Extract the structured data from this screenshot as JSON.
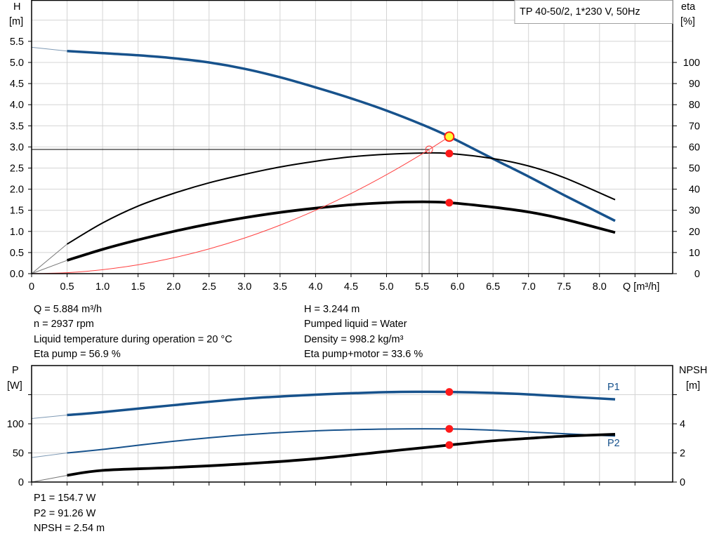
{
  "title_box": "TP 40-50/2, 1*230 V, 50Hz",
  "top_chart": {
    "left_axis": {
      "name": "H",
      "unit": "[m]"
    },
    "right_axis": {
      "name": "eta",
      "unit": "[%]"
    },
    "x_axis_label": "Q [m³/h]"
  },
  "bottom_chart": {
    "left_axis": {
      "name": "P",
      "unit": "[W]"
    },
    "right_axis": {
      "name": "NPSH",
      "unit": "[m]"
    },
    "curve_labels": {
      "p1": "P1",
      "p2": "P2"
    }
  },
  "readouts": {
    "q": "Q = 5.884 m³/h",
    "n": "n = 2937 rpm",
    "liquid_temp": "Liquid temperature during operation = 20 °C",
    "eta_pump": "Eta pump = 56.9 %",
    "h": "H = 3.244 m",
    "pumped_liquid": "Pumped liquid = Water",
    "density": "Density = 998.2 kg/m³",
    "eta_pump_motor": "Eta pump+motor = 33.6 %",
    "p1": "P1 = 154.7 W",
    "p2": "P2 = 91.26 W",
    "npsh": "NPSH = 2.54 m"
  },
  "colors": {
    "curve_blue": "#17528c",
    "marker_red": "#ff1a1a",
    "duty_yellow": "#ffff33",
    "system_red": "#ff4040",
    "grid": "#d4d4d4"
  },
  "chart_data": [
    {
      "type": "line",
      "title": "TP 40-50/2, 1*230 V, 50Hz",
      "xlabel": "Q [m³/h]",
      "ylabel": "H [m]",
      "y2label": "eta [%]",
      "xlim": [
        0,
        9.0
      ],
      "ylim": [
        0,
        6.45
      ],
      "y2lim": [
        0,
        129
      ],
      "grid": true,
      "xticks": [
        "0",
        "0.5",
        "1.0",
        "1.5",
        "2.0",
        "2.5",
        "3.0",
        "3.5",
        "4.0",
        "4.5",
        "5.0",
        "5.5",
        "6.0",
        "6.5",
        "7.0",
        "7.5",
        "8.0"
      ],
      "yticks": [
        "0.0",
        "0.5",
        "1.0",
        "1.5",
        "2.0",
        "2.5",
        "3.0",
        "3.5",
        "4.0",
        "4.5",
        "5.0",
        "5.5"
      ],
      "y2ticks": [
        "0",
        "10",
        "20",
        "30",
        "40",
        "50",
        "60",
        "70",
        "80",
        "90",
        "100"
      ],
      "series": [
        {
          "axis": "left",
          "style": "thick-blue",
          "extension": [
            [
              0,
              5.36
            ],
            [
              0.5,
              5.27
            ]
          ],
          "points": [
            [
              0.5,
              5.27
            ],
            [
              1.0,
              5.22
            ],
            [
              1.5,
              5.17
            ],
            [
              2.0,
              5.1
            ],
            [
              2.5,
              5.0
            ],
            [
              3.0,
              4.85
            ],
            [
              3.5,
              4.65
            ],
            [
              4.0,
              4.41
            ],
            [
              4.5,
              4.15
            ],
            [
              5.0,
              3.86
            ],
            [
              5.5,
              3.53
            ],
            [
              5.884,
              3.244
            ],
            [
              6.5,
              2.72
            ],
            [
              7.0,
              2.3
            ],
            [
              7.5,
              1.86
            ],
            [
              8.22,
              1.25
            ]
          ]
        },
        {
          "axis": "right",
          "style": "thin-black",
          "extension": [
            [
              0,
              0
            ],
            [
              0.5,
              14
            ]
          ],
          "points": [
            [
              0.5,
              14
            ],
            [
              1.0,
              24
            ],
            [
              1.5,
              32
            ],
            [
              2.0,
              38
            ],
            [
              2.5,
              43
            ],
            [
              3.0,
              47
            ],
            [
              3.5,
              50.5
            ],
            [
              4.0,
              53.2
            ],
            [
              4.5,
              55.3
            ],
            [
              5.0,
              56.5
            ],
            [
              5.5,
              57.1
            ],
            [
              5.884,
              56.9
            ],
            [
              6.5,
              54.5
            ],
            [
              7.0,
              51
            ],
            [
              7.5,
              45.5
            ],
            [
              8.22,
              35
            ]
          ]
        },
        {
          "axis": "right",
          "style": "thick-black",
          "extension": [
            [
              0,
              0
            ],
            [
              0.5,
              6.3
            ]
          ],
          "points": [
            [
              0.5,
              6.3
            ],
            [
              1.0,
              11.5
            ],
            [
              1.5,
              16
            ],
            [
              2.0,
              20
            ],
            [
              2.5,
              23.5
            ],
            [
              3.0,
              26.5
            ],
            [
              3.5,
              29
            ],
            [
              4.0,
              31
            ],
            [
              4.5,
              32.6
            ],
            [
              5.0,
              33.6
            ],
            [
              5.5,
              34
            ],
            [
              5.884,
              33.6
            ],
            [
              6.5,
              31.5
            ],
            [
              7.0,
              29.2
            ],
            [
              7.5,
              25.8
            ],
            [
              8.22,
              19.5
            ]
          ]
        },
        {
          "axis": "left",
          "style": "system-curve",
          "points": [
            [
              0,
              0
            ],
            [
              0.5,
              0.023
            ],
            [
              1.0,
              0.094
            ],
            [
              1.5,
              0.21
            ],
            [
              2.0,
              0.375
            ],
            [
              2.5,
              0.586
            ],
            [
              3.0,
              0.843
            ],
            [
              3.5,
              1.148
            ],
            [
              4.0,
              1.5
            ],
            [
              4.5,
              1.897
            ],
            [
              5.0,
              2.343
            ],
            [
              5.5,
              2.834
            ],
            [
              5.884,
              3.244
            ]
          ]
        }
      ],
      "markers": {
        "duty_point": [
          5.884,
          3.244
        ],
        "eta_pump": [
          5.884,
          56.9
        ],
        "eta_pump_motor": [
          5.884,
          33.6
        ],
        "requested_point": [
          5.6,
          2.94
        ]
      }
    },
    {
      "type": "line",
      "ylabel": "P [W]",
      "y2label": "NPSH [m]",
      "xlim": [
        0,
        9.0
      ],
      "ylim": [
        0,
        200
      ],
      "y2lim": [
        0,
        8
      ],
      "grid": true,
      "yticks": [
        "0",
        "50",
        "100"
      ],
      "y2ticks": [
        "0",
        "2",
        "4"
      ],
      "series": [
        {
          "name": "P1",
          "axis": "left",
          "style": "thick-blue",
          "extension": [
            [
              0,
              109
            ],
            [
              0.5,
              115
            ]
          ],
          "points": [
            [
              0.5,
              115
            ],
            [
              1.0,
              120
            ],
            [
              2.0,
              132
            ],
            [
              3.0,
              143
            ],
            [
              4.0,
              150
            ],
            [
              5.0,
              154.3
            ],
            [
              5.5,
              155
            ],
            [
              5.884,
              154.7
            ],
            [
              6.5,
              153
            ],
            [
              7.0,
              150.5
            ],
            [
              7.5,
              147
            ],
            [
              8.22,
              142
            ]
          ]
        },
        {
          "name": "P2",
          "axis": "left",
          "style": "thin-blue",
          "extension": [
            [
              0,
              42
            ],
            [
              0.5,
              50
            ]
          ],
          "points": [
            [
              0.5,
              50
            ],
            [
              1.0,
              56
            ],
            [
              2.0,
              70
            ],
            [
              3.0,
              81
            ],
            [
              4.0,
              88
            ],
            [
              5.0,
              91
            ],
            [
              5.884,
              91.26
            ],
            [
              6.5,
              89
            ],
            [
              7.0,
              86
            ],
            [
              7.5,
              83
            ],
            [
              8.22,
              79
            ]
          ]
        },
        {
          "axis": "right",
          "style": "thick-black",
          "extension": [
            [
              0,
              0
            ],
            [
              0.5,
              0.46
            ]
          ],
          "points": [
            [
              0.5,
              0.46
            ],
            [
              1.0,
              0.8
            ],
            [
              2.0,
              1.0
            ],
            [
              3.0,
              1.25
            ],
            [
              4.0,
              1.6
            ],
            [
              5.0,
              2.1
            ],
            [
              5.884,
              2.54
            ],
            [
              6.5,
              2.83
            ],
            [
              7.0,
              3.0
            ],
            [
              7.5,
              3.15
            ],
            [
              8.22,
              3.28
            ]
          ]
        }
      ],
      "markers": {
        "p1": [
          5.884,
          154.7
        ],
        "p2": [
          5.884,
          91.26
        ],
        "npsh": [
          5.884,
          2.54
        ]
      }
    }
  ]
}
